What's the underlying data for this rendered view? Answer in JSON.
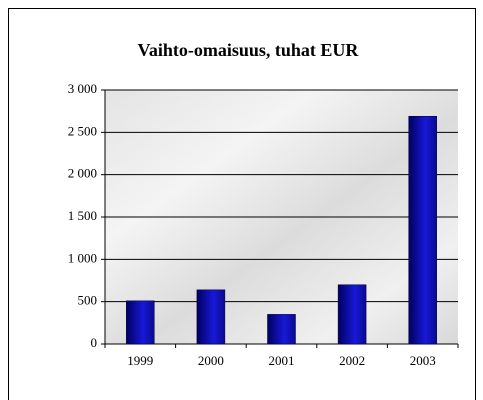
{
  "chart_data": {
    "type": "bar",
    "title": "Vaihto-omaisuus, tuhat EUR",
    "categories": [
      "1999",
      "2000",
      "2001",
      "2002",
      "2003"
    ],
    "values": [
      510,
      640,
      350,
      700,
      2690
    ],
    "color": "#1010c0",
    "ylim": [
      0,
      3000
    ],
    "yticks": [
      0,
      500,
      {
        "value": 1000,
        "label": "1 000"
      },
      {
        "value": 1500,
        "label": "1 500"
      },
      {
        "value": 2000,
        "label": "2 000"
      },
      {
        "value": 2500,
        "label": "2 500"
      },
      {
        "value": 3000,
        "label": "3 000"
      }
    ],
    "grid": true
  }
}
